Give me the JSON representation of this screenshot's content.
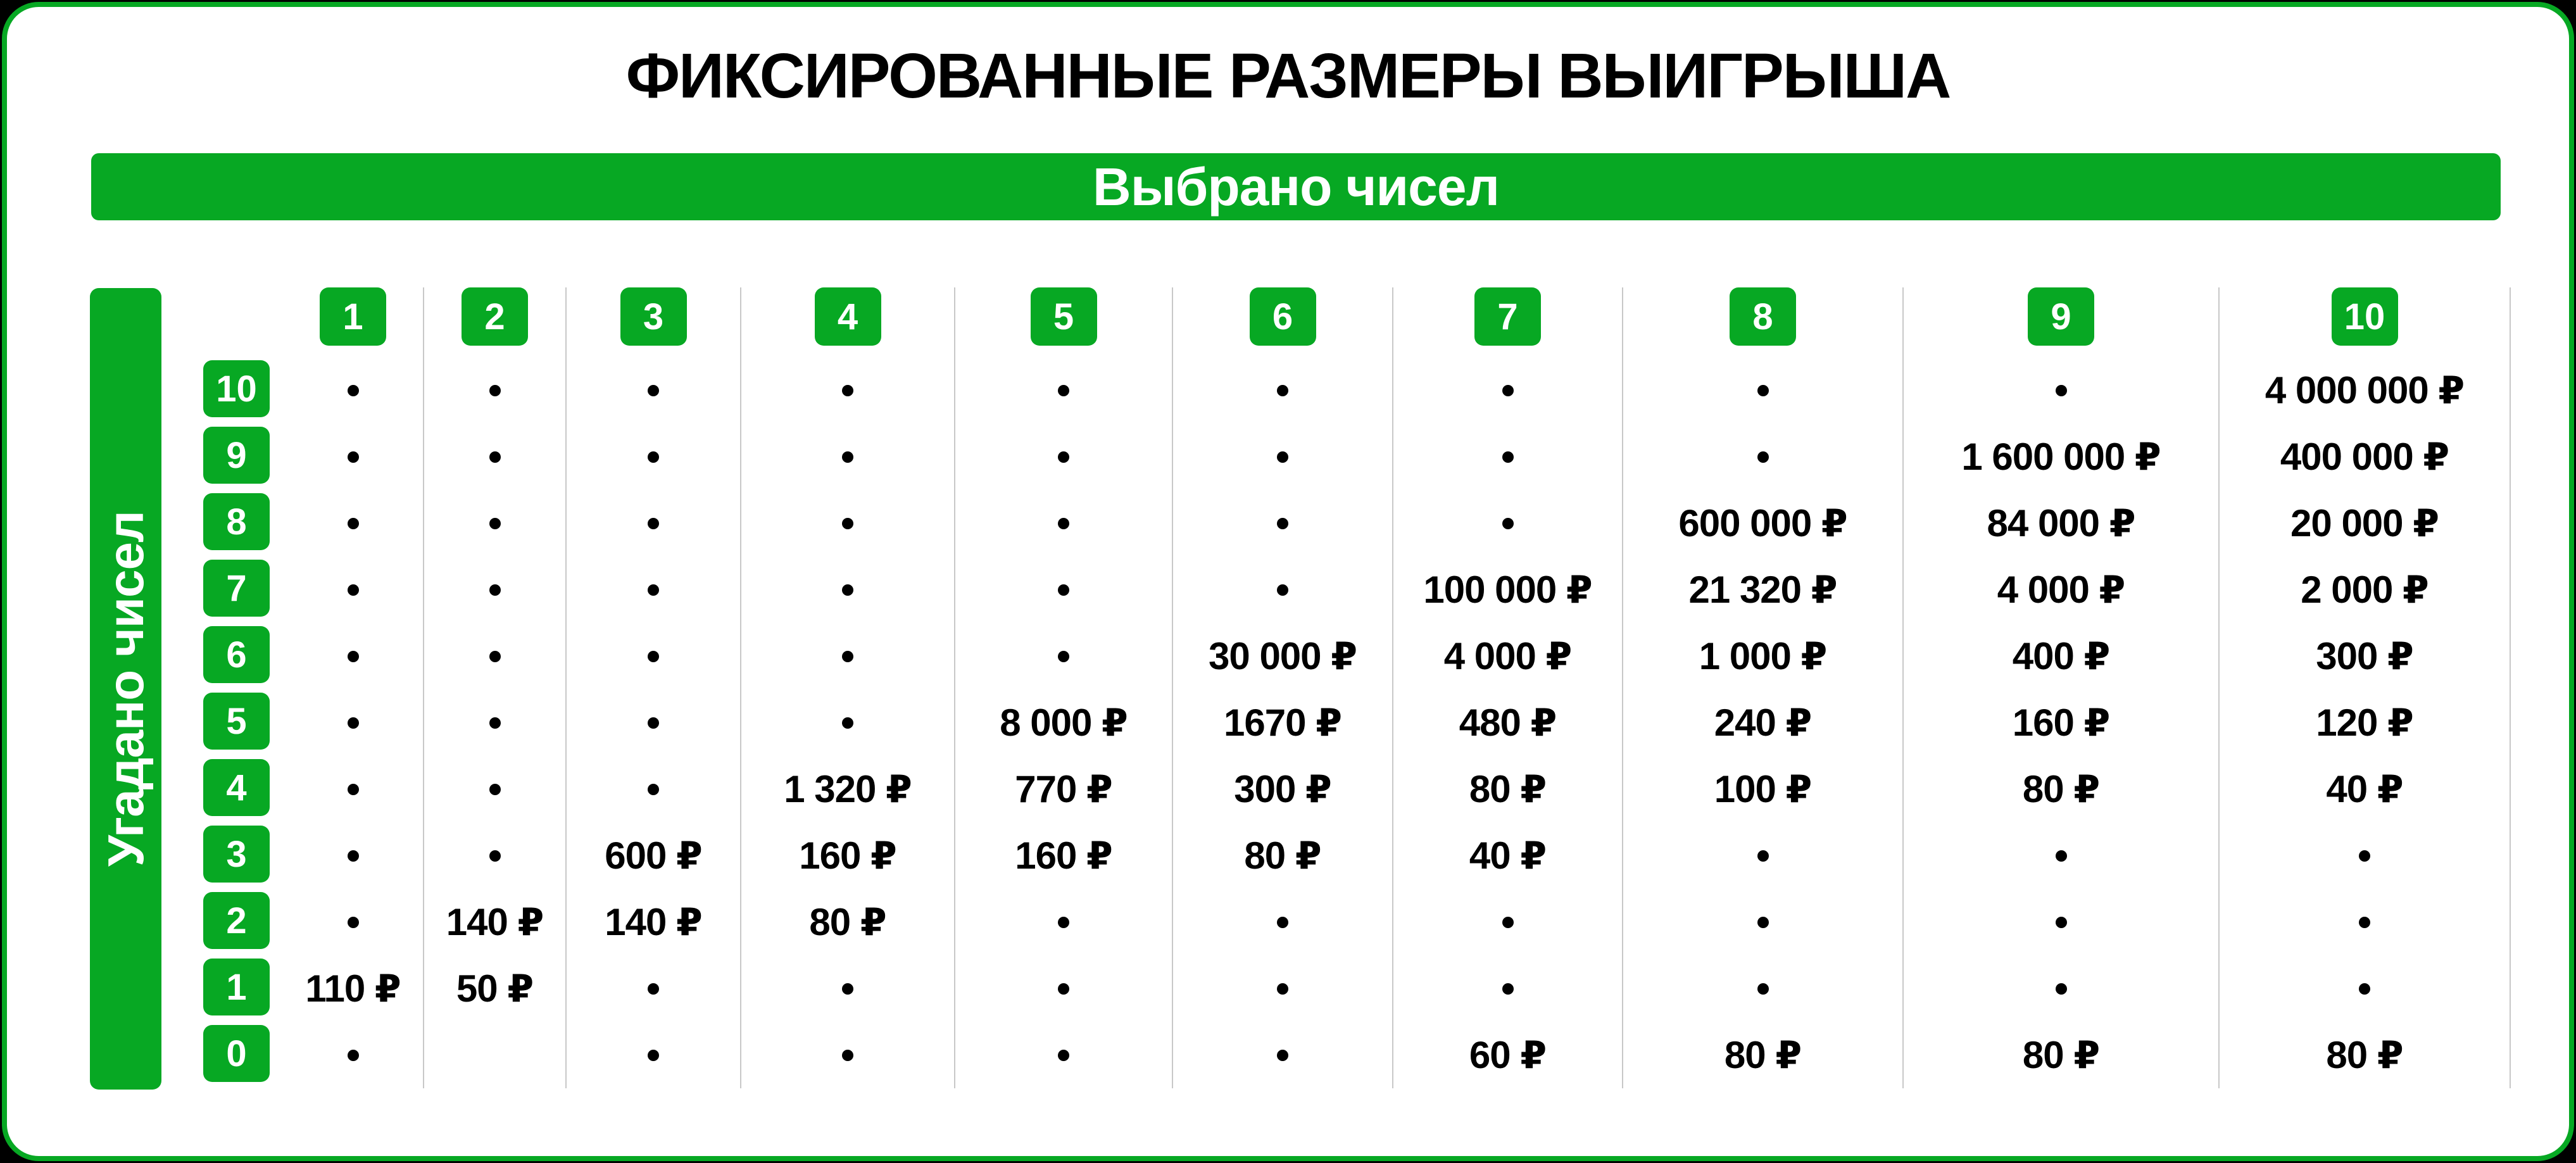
{
  "title": "ФИКСИРОВАННЫЕ РАЗМЕРЫ ВЫИГРЫША",
  "top_axis_label": "Выбрано чисел",
  "left_axis_label": "Угадано чисел",
  "columns": [
    "1",
    "2",
    "3",
    "4",
    "5",
    "6",
    "7",
    "8",
    "9",
    "10"
  ],
  "rows": [
    "10",
    "9",
    "8",
    "7",
    "6",
    "5",
    "4",
    "3",
    "2",
    "1",
    "0"
  ],
  "empty_marker": "•",
  "currency": "₽",
  "colors": {
    "green": "#07a823",
    "divider": "#c8c8c8",
    "text": "#000000",
    "background": "#ffffff",
    "outer_edge": "#000000"
  },
  "grid": {
    "cells": [
      [
        "•",
        "•",
        "•",
        "•",
        "•",
        "•",
        "•",
        "•",
        "•",
        "4 000 000 ₽"
      ],
      [
        "•",
        "•",
        "•",
        "•",
        "•",
        "•",
        "•",
        "•",
        "1 600 000 ₽",
        "400 000 ₽"
      ],
      [
        "•",
        "•",
        "•",
        "•",
        "•",
        "•",
        "•",
        "600 000 ₽",
        "84 000 ₽",
        "20 000 ₽"
      ],
      [
        "•",
        "•",
        "•",
        "•",
        "•",
        "•",
        "100 000 ₽",
        "21 320 ₽",
        "4 000 ₽",
        "2 000 ₽"
      ],
      [
        "•",
        "•",
        "•",
        "•",
        "•",
        "30 000 ₽",
        "4 000 ₽",
        "1 000 ₽",
        "400 ₽",
        "300 ₽"
      ],
      [
        "•",
        "•",
        "•",
        "•",
        "8 000 ₽",
        "1670 ₽",
        "480 ₽",
        "240 ₽",
        "160 ₽",
        "120 ₽"
      ],
      [
        "•",
        "•",
        "•",
        "1 320 ₽",
        "770 ₽",
        "300 ₽",
        "80 ₽",
        "100 ₽",
        "80 ₽",
        "40 ₽"
      ],
      [
        "•",
        "•",
        "600 ₽",
        "160 ₽",
        "160 ₽",
        "80 ₽",
        "40 ₽",
        "•",
        "•",
        "•"
      ],
      [
        "•",
        "140 ₽",
        "140 ₽",
        "80 ₽",
        "•",
        "•",
        "•",
        "•",
        "•",
        "•"
      ],
      [
        "110 ₽",
        "50 ₽",
        "•",
        "•",
        "•",
        "•",
        "•",
        "•",
        "•",
        "•"
      ],
      [
        "•",
        "",
        "•",
        "•",
        "•",
        "•",
        "60 ₽",
        "80 ₽",
        "80 ₽",
        "80 ₽"
      ]
    ]
  }
}
